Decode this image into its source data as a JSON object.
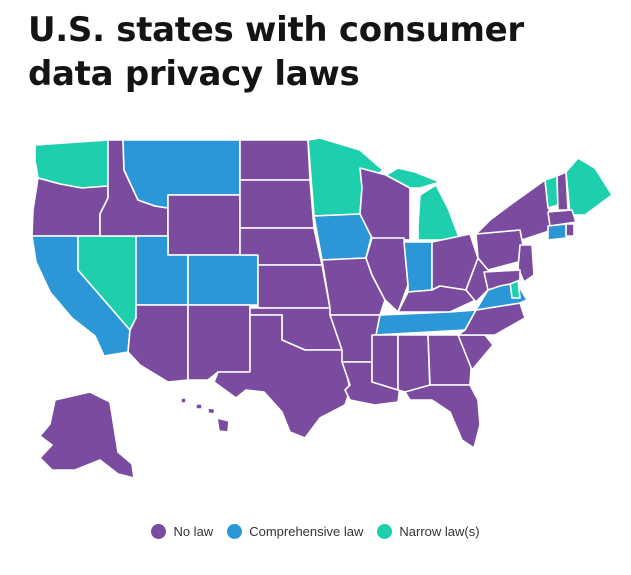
{
  "title": "U.S. states with consumer data privacy laws",
  "colors": {
    "no_law": "#7a4b9e",
    "comprehensive": "#2b97d6",
    "narrow": "#1ecfae",
    "border": "#ffffff"
  },
  "legend": {
    "no_law": "No law",
    "comprehensive": "Comprehensive law",
    "narrow": "Narrow law(s)"
  },
  "states": {
    "WA": "narrow",
    "OR": "no_law",
    "CA": "comprehensive",
    "NV": "narrow",
    "ID": "no_law",
    "MT": "comprehensive",
    "WY": "no_law",
    "UT": "comprehensive",
    "CO": "comprehensive",
    "AZ": "no_law",
    "NM": "no_law",
    "ND": "no_law",
    "SD": "no_law",
    "NE": "no_law",
    "KS": "no_law",
    "OK": "no_law",
    "TX": "no_law",
    "MN": "narrow",
    "IA": "comprehensive",
    "MO": "no_law",
    "AR": "no_law",
    "LA": "no_law",
    "WI": "no_law",
    "IL": "no_law",
    "MI": "narrow",
    "IN": "comprehensive",
    "OH": "no_law",
    "KY": "no_law",
    "TN": "comprehensive",
    "MS": "no_law",
    "AL": "no_law",
    "GA": "no_law",
    "FL": "no_law",
    "SC": "no_law",
    "NC": "no_law",
    "VA": "comprehensive",
    "WV": "no_law",
    "PA": "no_law",
    "NY": "no_law",
    "VT": "narrow",
    "NH": "no_law",
    "ME": "narrow",
    "MA": "no_law",
    "RI": "no_law",
    "CT": "comprehensive",
    "NJ": "no_law",
    "DE": "narrow",
    "MD": "no_law",
    "AK": "no_law",
    "HI": "no_law"
  }
}
